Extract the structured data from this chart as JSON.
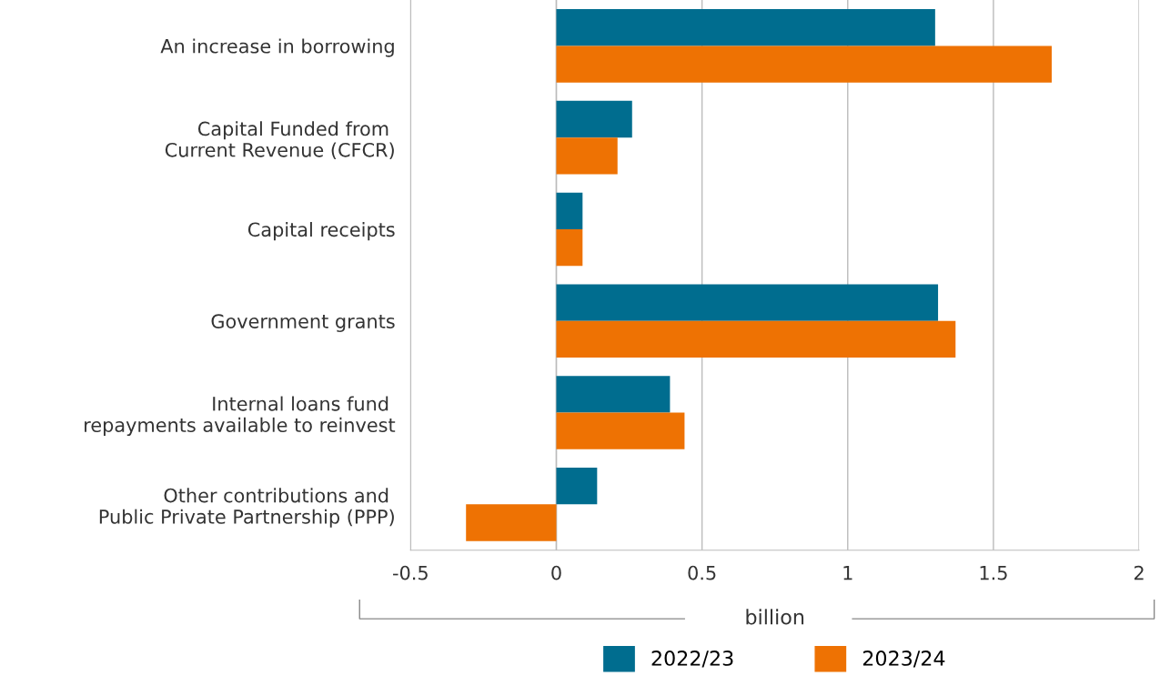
{
  "chart_data": {
    "type": "bar",
    "orientation": "horizontal",
    "categories": [
      "An increase in borrowing",
      "Capital Funded from \nCurrent Revenue (CFCR)",
      "Capital receipts",
      "Government grants",
      "Internal loans fund \nrepayments available to reinvest",
      "Other contributions and \nPublic Private Partnership (PPP)"
    ],
    "series": [
      {
        "name": "2022/23",
        "color": "#006d8f",
        "values": [
          1.3,
          0.26,
          0.09,
          1.31,
          0.39,
          0.14
        ]
      },
      {
        "name": "2023/24",
        "color": "#ee7203",
        "values": [
          1.7,
          0.21,
          0.09,
          1.37,
          0.44,
          -0.31
        ]
      }
    ],
    "xlabel": "billion",
    "xlim": [
      -0.5,
      2
    ],
    "xticks": [
      -0.5,
      0,
      0.5,
      1,
      1.5,
      2
    ],
    "grid": "x",
    "legend": "bottom"
  }
}
